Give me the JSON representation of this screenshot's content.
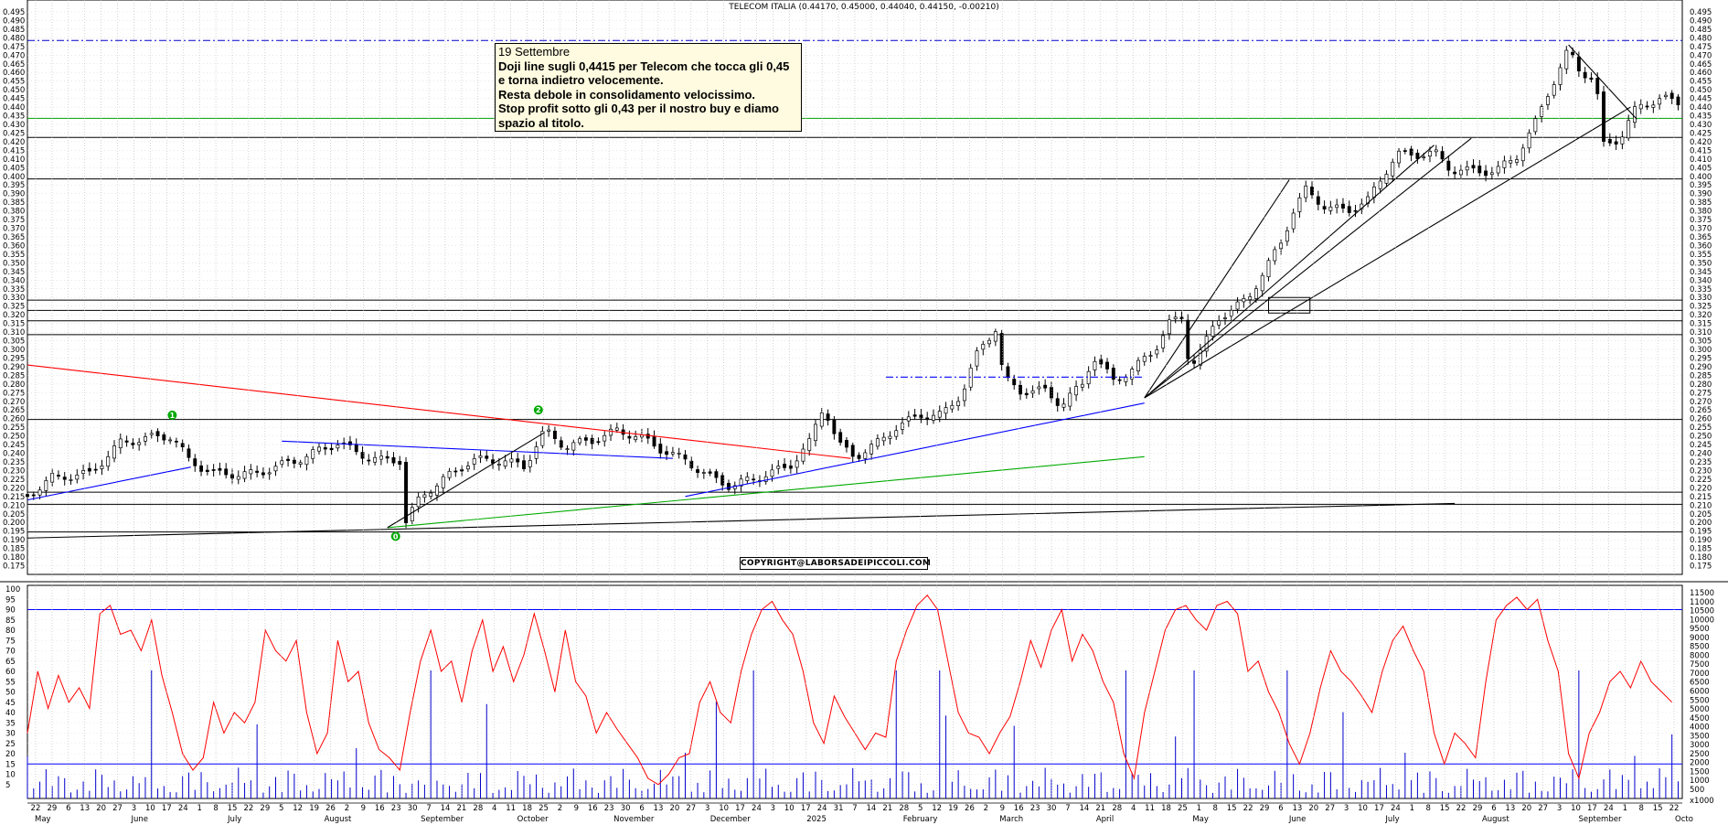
{
  "chart_data": [
    {
      "type": "candlestick",
      "title": "TELECOM ITALIA (0.44170, 0.45000, 0.44040, 0.44150, -0.00210)",
      "ylim": [
        0.17,
        0.495
      ],
      "y_ticks": [
        "0.495",
        "0.490",
        "0.485",
        "0.480",
        "0.475",
        "0.470",
        "0.465",
        "0.460",
        "0.455",
        "0.450",
        "0.445",
        "0.440",
        "0.435",
        "0.430",
        "0.425",
        "0.420",
        "0.415",
        "0.410",
        "0.405",
        "0.400",
        "0.395",
        "0.390",
        "0.385",
        "0.380",
        "0.375",
        "0.370",
        "0.365",
        "0.360",
        "0.355",
        "0.350",
        "0.345",
        "0.340",
        "0.335",
        "0.330",
        "0.325",
        "0.320",
        "0.315",
        "0.310",
        "0.305",
        "0.300",
        "0.295",
        "0.290",
        "0.285",
        "0.280",
        "0.275",
        "0.270",
        "0.265",
        "0.260",
        "0.255",
        "0.250",
        "0.245",
        "0.240",
        "0.235",
        "0.230",
        "0.225",
        "0.220",
        "0.215",
        "0.210",
        "0.205",
        "0.200",
        "0.195",
        "0.190",
        "0.185",
        "0.180",
        "0.175"
      ],
      "close_path": [
        [
          0,
          0.215
        ],
        [
          12,
          0.226
        ],
        [
          30,
          0.228
        ],
        [
          45,
          0.246
        ],
        [
          60,
          0.249
        ],
        [
          70,
          0.25
        ],
        [
          78,
          0.236
        ],
        [
          90,
          0.228
        ],
        [
          110,
          0.228
        ],
        [
          130,
          0.236
        ],
        [
          150,
          0.246
        ],
        [
          160,
          0.24
        ],
        [
          170,
          0.236
        ],
        [
          180,
          0.236
        ],
        [
          183,
          0.2
        ],
        [
          190,
          0.215
        ],
        [
          200,
          0.224
        ],
        [
          215,
          0.236
        ],
        [
          230,
          0.236
        ],
        [
          240,
          0.232
        ],
        [
          250,
          0.253
        ],
        [
          260,
          0.244
        ],
        [
          275,
          0.248
        ],
        [
          285,
          0.253
        ],
        [
          295,
          0.25
        ],
        [
          305,
          0.243
        ],
        [
          318,
          0.236
        ],
        [
          330,
          0.226
        ],
        [
          340,
          0.221
        ],
        [
          355,
          0.227
        ],
        [
          368,
          0.232
        ],
        [
          378,
          0.246
        ],
        [
          385,
          0.268
        ],
        [
          392,
          0.245
        ],
        [
          400,
          0.238
        ],
        [
          410,
          0.245
        ],
        [
          420,
          0.255
        ],
        [
          432,
          0.262
        ],
        [
          442,
          0.262
        ],
        [
          452,
          0.275
        ],
        [
          460,
          0.3
        ],
        [
          468,
          0.312
        ],
        [
          472,
          0.283
        ],
        [
          480,
          0.276
        ],
        [
          492,
          0.276
        ],
        [
          500,
          0.268
        ],
        [
          510,
          0.28
        ],
        [
          515,
          0.296
        ],
        [
          525,
          0.282
        ],
        [
          535,
          0.289
        ],
        [
          545,
          0.3
        ],
        [
          552,
          0.315
        ],
        [
          558,
          0.318
        ],
        [
          562,
          0.29
        ],
        [
          568,
          0.3
        ],
        [
          575,
          0.318
        ],
        [
          582,
          0.322
        ],
        [
          590,
          0.33
        ],
        [
          598,
          0.345
        ],
        [
          606,
          0.362
        ],
        [
          612,
          0.38
        ],
        [
          618,
          0.392
        ],
        [
          628,
          0.382
        ],
        [
          638,
          0.38
        ],
        [
          648,
          0.386
        ],
        [
          655,
          0.4
        ],
        [
          662,
          0.413
        ],
        [
          670,
          0.412
        ],
        [
          680,
          0.414
        ],
        [
          688,
          0.404
        ],
        [
          698,
          0.403
        ],
        [
          710,
          0.403
        ],
        [
          720,
          0.412
        ],
        [
          728,
          0.428
        ],
        [
          735,
          0.448
        ],
        [
          740,
          0.46
        ],
        [
          745,
          0.473
        ],
        [
          750,
          0.462
        ],
        [
          758,
          0.455
        ],
        [
          762,
          0.418
        ],
        [
          770,
          0.422
        ],
        [
          778,
          0.44
        ],
        [
          790,
          0.445
        ],
        [
          800,
          0.442
        ]
      ],
      "horizontal_levels": [
        0.4785,
        0.4335,
        0.4225,
        0.3985,
        0.3285,
        0.3225,
        0.3165,
        0.3085,
        0.2595,
        0.2175,
        0.2105,
        0.1945
      ],
      "trend_lines": [
        {
          "color": "#ff0000",
          "from": [
            0,
            0.291
          ],
          "to": [
            398,
            0.237
          ]
        },
        {
          "color": "#0000ff",
          "from": [
            0,
            0.213
          ],
          "to": [
            79,
            0.232
          ]
        },
        {
          "color": "#0000ff",
          "from": [
            123,
            0.247
          ],
          "to": [
            312,
            0.237
          ]
        },
        {
          "color": "#0000ff",
          "from": [
            318,
            0.215
          ],
          "to": [
            540,
            0.269
          ]
        },
        {
          "color": "#00aa00",
          "from": [
            174,
            0.197
          ],
          "to": [
            540,
            0.238
          ]
        },
        {
          "color": "#000000",
          "from": [
            174,
            0.197
          ],
          "to": [
            250,
            0.252
          ]
        },
        {
          "color": "#000000",
          "from": [
            0,
            0.191
          ],
          "to": [
            690,
            0.211
          ]
        },
        {
          "color": "#000000",
          "from": [
            540,
            0.272
          ],
          "to": [
            610,
            0.398
          ]
        },
        {
          "color": "#000000",
          "from": [
            540,
            0.272
          ],
          "to": [
            680,
            0.418
          ]
        },
        {
          "color": "#000000",
          "from": [
            540,
            0.272
          ],
          "to": [
            775,
            0.44
          ]
        },
        {
          "color": "#000000",
          "from": [
            540,
            0.272
          ],
          "to": [
            698,
            0.422
          ]
        },
        {
          "color": "#000000",
          "from": [
            745,
            0.476
          ],
          "to": [
            778,
            0.433
          ]
        }
      ],
      "dashed_lines": [
        {
          "color": "#0000ff",
          "from": [
            415,
            0.284
          ],
          "to": [
            540,
            0.284
          ]
        }
      ],
      "markers": [
        {
          "label": "1",
          "color": "#00aa00",
          "x": 70,
          "y": 0.262
        },
        {
          "label": "2",
          "color": "#00aa00",
          "x": 247,
          "y": 0.265
        },
        {
          "label": "0",
          "color": "#00aa00",
          "x": 178,
          "y": 0.192
        }
      ],
      "annotation_box": {
        "title": "19 Settembre",
        "lines": [
          "Doji line sugli 0,4415 per Telecom che tocca gli 0,45",
          "e torna indietro velocemente.",
          "Resta debole in consolidamento velocissimo.",
          "Stop profit sotto gli 0,43 per il nostro buy e diamo",
          "spazio al titolo."
        ]
      },
      "copyright": "COPYRIGHT@LABORSADEIPICCOLI.COM"
    },
    {
      "type": "line+bar",
      "oscillator_ylim": [
        0,
        100
      ],
      "oscillator_ticks": [
        "100",
        "95",
        "90",
        "85",
        "80",
        "75",
        "70",
        "65",
        "60",
        "55",
        "50",
        "45",
        "40",
        "35",
        "30",
        "25",
        "20",
        "15",
        "10",
        "5"
      ],
      "volume_ticks": [
        "11500",
        "11000",
        "10500",
        "10000",
        "9500",
        "9000",
        "8500",
        "8000",
        "7500",
        "7000",
        "6500",
        "6000",
        "5500",
        "5000",
        "4500",
        "4000",
        "3500",
        "3000",
        "2500",
        "2000",
        "1500",
        "1000",
        "500"
      ],
      "volume_unit_label": "x1000",
      "oscillator_levels": [
        90,
        15
      ],
      "oscillator_path": [
        [
          0,
          30
        ],
        [
          5,
          60
        ],
        [
          10,
          42
        ],
        [
          15,
          58
        ],
        [
          20,
          45
        ],
        [
          25,
          52
        ],
        [
          30,
          42
        ],
        [
          35,
          88
        ],
        [
          40,
          92
        ],
        [
          45,
          78
        ],
        [
          50,
          80
        ],
        [
          55,
          70
        ],
        [
          60,
          85
        ],
        [
          65,
          58
        ],
        [
          70,
          40
        ],
        [
          75,
          20
        ],
        [
          80,
          12
        ],
        [
          85,
          18
        ],
        [
          90,
          45
        ],
        [
          95,
          30
        ],
        [
          100,
          40
        ],
        [
          105,
          35
        ],
        [
          110,
          45
        ],
        [
          115,
          80
        ],
        [
          120,
          70
        ],
        [
          125,
          65
        ],
        [
          130,
          75
        ],
        [
          135,
          40
        ],
        [
          140,
          20
        ],
        [
          145,
          30
        ],
        [
          150,
          75
        ],
        [
          155,
          55
        ],
        [
          160,
          60
        ],
        [
          165,
          35
        ],
        [
          170,
          22
        ],
        [
          175,
          18
        ],
        [
          180,
          12
        ],
        [
          185,
          40
        ],
        [
          190,
          65
        ],
        [
          195,
          80
        ],
        [
          200,
          60
        ],
        [
          205,
          65
        ],
        [
          210,
          45
        ],
        [
          215,
          70
        ],
        [
          220,
          85
        ],
        [
          225,
          60
        ],
        [
          230,
          72
        ],
        [
          235,
          55
        ],
        [
          240,
          68
        ],
        [
          245,
          88
        ],
        [
          250,
          70
        ],
        [
          255,
          50
        ],
        [
          260,
          80
        ],
        [
          265,
          55
        ],
        [
          270,
          48
        ],
        [
          275,
          30
        ],
        [
          280,
          40
        ],
        [
          285,
          32
        ],
        [
          290,
          25
        ],
        [
          295,
          18
        ],
        [
          300,
          8
        ],
        [
          305,
          5
        ],
        [
          310,
          10
        ],
        [
          315,
          18
        ],
        [
          320,
          20
        ],
        [
          325,
          45
        ],
        [
          330,
          55
        ],
        [
          335,
          40
        ],
        [
          340,
          35
        ],
        [
          345,
          60
        ],
        [
          350,
          78
        ],
        [
          355,
          90
        ],
        [
          360,
          94
        ],
        [
          365,
          85
        ],
        [
          370,
          78
        ],
        [
          375,
          60
        ],
        [
          380,
          35
        ],
        [
          385,
          25
        ],
        [
          390,
          48
        ],
        [
          395,
          38
        ],
        [
          400,
          30
        ],
        [
          405,
          22
        ],
        [
          410,
          30
        ],
        [
          415,
          28
        ],
        [
          420,
          65
        ],
        [
          425,
          80
        ],
        [
          430,
          92
        ],
        [
          435,
          97
        ],
        [
          440,
          90
        ],
        [
          445,
          65
        ],
        [
          450,
          40
        ],
        [
          455,
          30
        ],
        [
          460,
          28
        ],
        [
          465,
          20
        ],
        [
          470,
          30
        ],
        [
          475,
          38
        ],
        [
          480,
          55
        ],
        [
          485,
          75
        ],
        [
          490,
          62
        ],
        [
          495,
          80
        ],
        [
          500,
          90
        ],
        [
          505,
          65
        ],
        [
          510,
          78
        ],
        [
          515,
          70
        ],
        [
          520,
          55
        ],
        [
          525,
          45
        ],
        [
          530,
          20
        ],
        [
          535,
          8
        ],
        [
          540,
          40
        ],
        [
          545,
          60
        ],
        [
          550,
          80
        ],
        [
          555,
          90
        ],
        [
          560,
          92
        ],
        [
          565,
          85
        ],
        [
          570,
          80
        ],
        [
          575,
          92
        ],
        [
          580,
          94
        ],
        [
          585,
          88
        ],
        [
          590,
          60
        ],
        [
          595,
          65
        ],
        [
          600,
          50
        ],
        [
          605,
          40
        ],
        [
          610,
          25
        ],
        [
          615,
          15
        ],
        [
          620,
          30
        ],
        [
          625,
          52
        ],
        [
          630,
          70
        ],
        [
          635,
          60
        ],
        [
          640,
          55
        ],
        [
          645,
          48
        ],
        [
          650,
          40
        ],
        [
          655,
          60
        ],
        [
          660,
          75
        ],
        [
          665,
          82
        ],
        [
          670,
          70
        ],
        [
          675,
          60
        ],
        [
          680,
          30
        ],
        [
          685,
          15
        ],
        [
          690,
          30
        ],
        [
          695,
          25
        ],
        [
          700,
          18
        ],
        [
          705,
          55
        ],
        [
          710,
          85
        ],
        [
          715,
          92
        ],
        [
          720,
          96
        ],
        [
          725,
          90
        ],
        [
          730,
          95
        ],
        [
          735,
          75
        ],
        [
          740,
          60
        ],
        [
          745,
          20
        ],
        [
          750,
          8
        ],
        [
          755,
          30
        ],
        [
          760,
          40
        ],
        [
          765,
          55
        ],
        [
          770,
          60
        ],
        [
          775,
          52
        ],
        [
          780,
          65
        ],
        [
          785,
          55
        ],
        [
          790,
          50
        ],
        [
          795,
          45
        ]
      ]
    }
  ],
  "x_axis": {
    "day_labels": [
      "22",
      "29",
      "6",
      "13",
      "20",
      "27",
      "3",
      "10",
      "17",
      "24",
      "1",
      "8",
      "15",
      "22",
      "29",
      "5",
      "12",
      "19",
      "26",
      "2",
      "9",
      "16",
      "23",
      "30",
      "7",
      "14",
      "21",
      "28",
      "4",
      "11",
      "18",
      "25",
      "2",
      "9",
      "16",
      "23",
      "30",
      "6",
      "13",
      "20",
      "27",
      "3",
      "10",
      "17",
      "24",
      "3",
      "10",
      "17",
      "24",
      "31",
      "7",
      "14",
      "21",
      "28",
      "5",
      "12",
      "19",
      "26",
      "2",
      "9",
      "16",
      "23",
      "30",
      "7",
      "14",
      "21",
      "28",
      "4",
      "11",
      "18",
      "25",
      "1",
      "8",
      "15",
      "22",
      "29",
      "6",
      "13",
      "20",
      "27",
      "3",
      "10",
      "17",
      "24",
      "1",
      "8",
      "15",
      "22",
      "29",
      "6",
      "13",
      "20",
      "27",
      "3",
      "10",
      "17",
      "24",
      "1",
      "8",
      "15",
      "22"
    ],
    "month_labels": [
      "May",
      "June",
      "July",
      "August",
      "September",
      "October",
      "November",
      "December",
      "2025",
      "February",
      "March",
      "April",
      "May",
      "June",
      "July",
      "August",
      "September",
      "Octo"
    ]
  }
}
